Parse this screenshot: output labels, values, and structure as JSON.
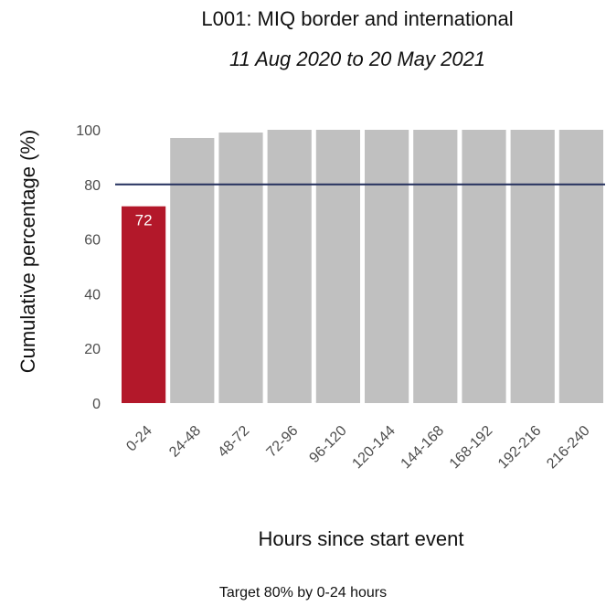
{
  "chart_data": {
    "type": "bar",
    "title": "L001: MIQ border and international",
    "subtitle": "11 Aug 2020 to 20 May 2021",
    "xlabel": "Hours since start event",
    "ylabel": "Cumulative percentage (%)",
    "caption": "Target 80% by 0-24 hours",
    "categories": [
      "0-24",
      "24-48",
      "48-72",
      "72-96",
      "96-120",
      "120-144",
      "144-168",
      "168-192",
      "192-216",
      "216-240"
    ],
    "values": [
      72,
      97,
      99,
      100,
      100,
      100,
      100,
      100,
      100,
      100
    ],
    "data_labels": [
      "72",
      "",
      "",
      "",
      "",
      "",
      "",
      "",
      "",
      ""
    ],
    "yticks": [
      "0",
      "20",
      "40",
      "60",
      "80",
      "100"
    ],
    "ylim": [
      0,
      100
    ],
    "target_line": 80,
    "grid": false,
    "colors": {
      "highlight": "#b3182a",
      "bar": "#c0c0c0",
      "target_line": "#24305e"
    }
  }
}
